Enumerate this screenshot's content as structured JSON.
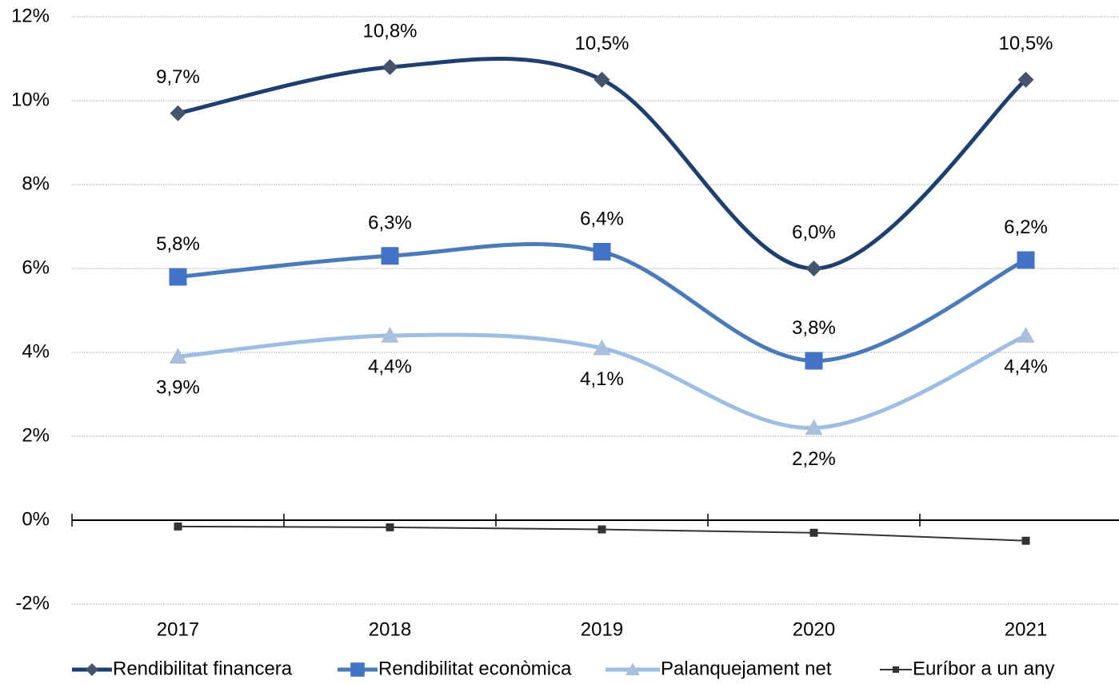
{
  "chart_data": {
    "type": "line",
    "categories": [
      "2017",
      "2018",
      "2019",
      "2020",
      "2021"
    ],
    "ylim": [
      -2,
      12
    ],
    "yticks": [
      {
        "value": -2,
        "label": "-2%"
      },
      {
        "value": 0,
        "label": "0%"
      },
      {
        "value": 2,
        "label": "2%"
      },
      {
        "value": 4,
        "label": "4%"
      },
      {
        "value": 6,
        "label": "6%"
      },
      {
        "value": 8,
        "label": "8%"
      },
      {
        "value": 10,
        "label": "10%"
      },
      {
        "value": 12,
        "label": "12%"
      }
    ],
    "grid": true,
    "legend": "bottom",
    "series": [
      {
        "name": "Rendibilitat financera",
        "color": "#1f3f6e",
        "marker": "diamond",
        "smooth": true,
        "values": [
          9.7,
          10.8,
          10.5,
          6.0,
          10.5
        ],
        "value_labels": [
          "9,7%",
          "10,8%",
          "10,5%",
          "6,0%",
          "10,5%"
        ]
      },
      {
        "name": "Rendibilitat econòmica",
        "color": "#4a7ab8",
        "marker": "square",
        "smooth": true,
        "values": [
          5.8,
          6.3,
          6.4,
          3.8,
          6.2
        ],
        "value_labels": [
          "5,8%",
          "6,3%",
          "6,4%",
          "3,8%",
          "6,2%"
        ]
      },
      {
        "name": "Palanquejament net",
        "color": "#9dbde3",
        "marker": "triangle",
        "smooth": true,
        "values": [
          3.9,
          4.4,
          4.1,
          2.2,
          4.4
        ],
        "value_labels": [
          "3,9%",
          "4,4%",
          "4,1%",
          "2,2%",
          "4,4%"
        ]
      },
      {
        "name": "Euríbor a un any",
        "color": "#333333",
        "marker": "square",
        "smooth": false,
        "values": [
          -0.15,
          -0.17,
          -0.22,
          -0.3,
          -0.49
        ]
      }
    ]
  }
}
